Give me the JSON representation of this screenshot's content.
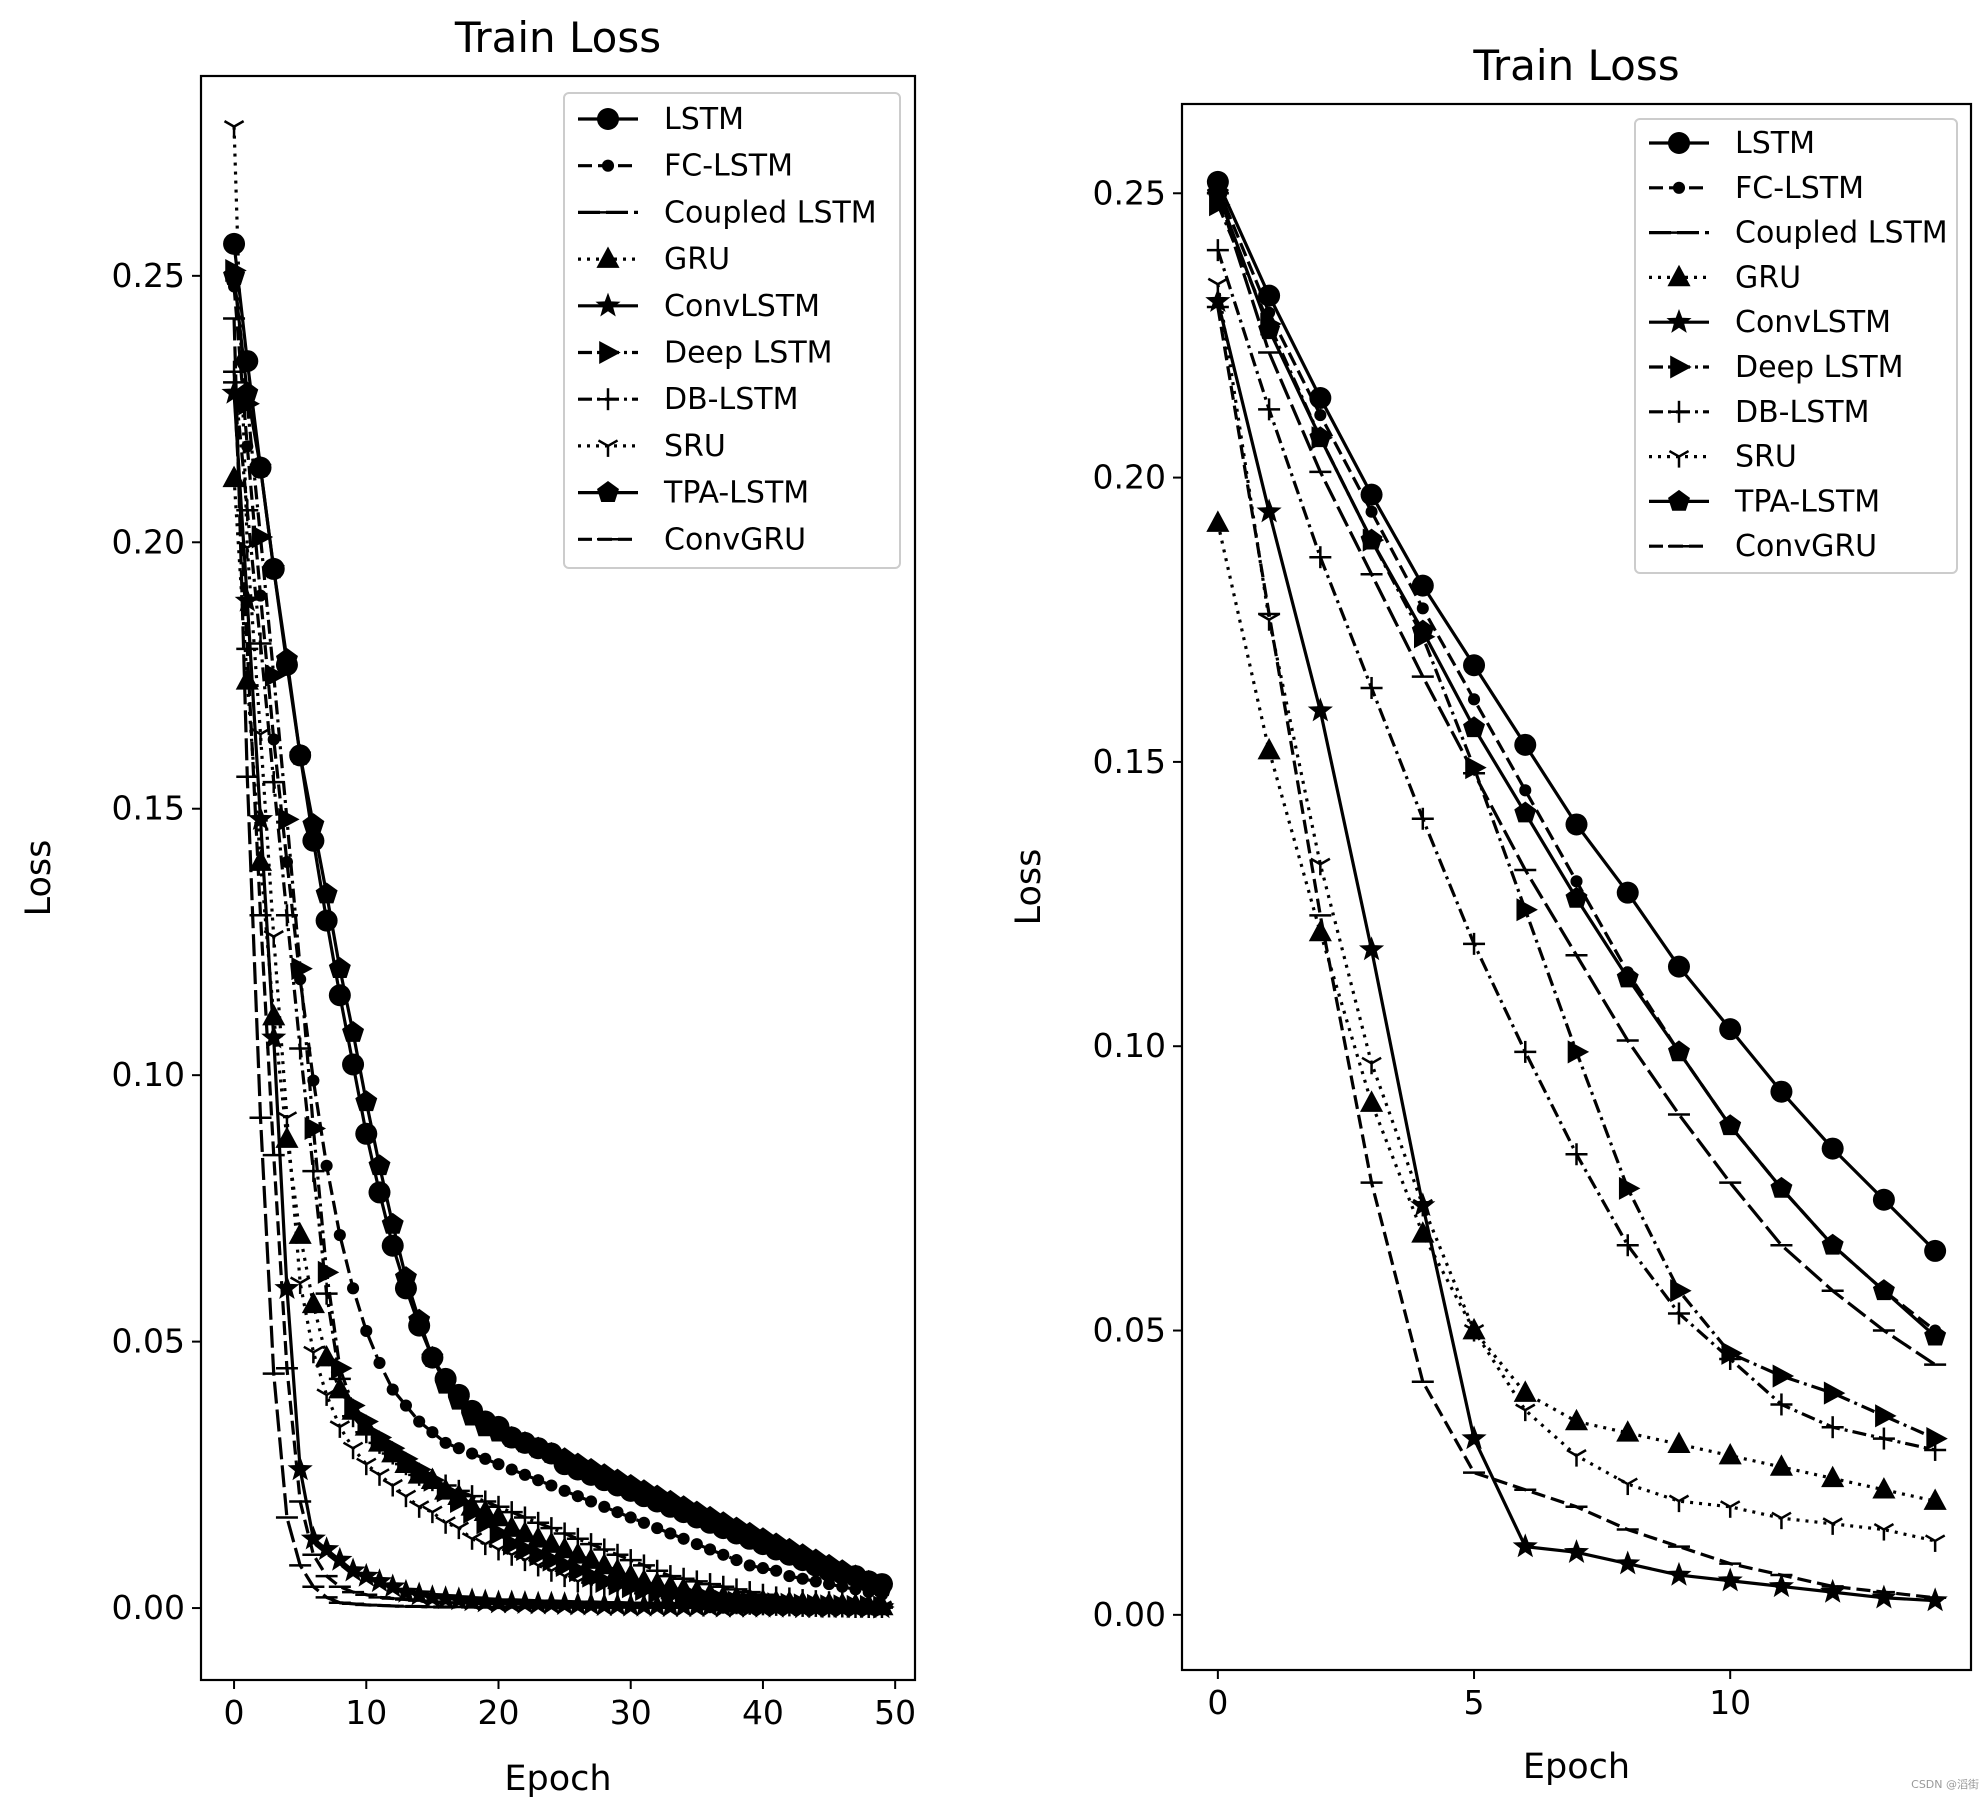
{
  "watermark": "CSDN @滔街",
  "chart_data": [
    {
      "type": "line",
      "title": "Train Loss",
      "xlabel": "Epoch",
      "ylabel": "Loss",
      "xlim": [
        -2.5,
        51.5
      ],
      "ylim": [
        -0.0135,
        0.2875
      ],
      "xticks": [
        0,
        10,
        20,
        30,
        40,
        50
      ],
      "yticks": [
        0.0,
        0.05,
        0.1,
        0.15,
        0.2,
        0.25
      ],
      "ytick_labels": [
        "0.00",
        "0.05",
        "0.10",
        "0.15",
        "0.20",
        "0.25"
      ],
      "legend_position": "top-right",
      "series": [
        {
          "name": "LSTM",
          "marker": "circle",
          "dash": "solid",
          "x_step": 1,
          "values": [
            0.256,
            0.234,
            0.214,
            0.195,
            0.177,
            0.16,
            0.144,
            0.129,
            0.115,
            0.102,
            0.089,
            0.078,
            0.068,
            0.06,
            0.053,
            0.047,
            0.043,
            0.04,
            0.037,
            0.035,
            0.034,
            0.032,
            0.031,
            0.03,
            0.029,
            0.027,
            0.026,
            0.025,
            0.024,
            0.023,
            0.022,
            0.021,
            0.02,
            0.019,
            0.018,
            0.017,
            0.016,
            0.015,
            0.014,
            0.013,
            0.012,
            0.011,
            0.01,
            0.009,
            0.008,
            0.007,
            0.0065,
            0.006,
            0.005,
            0.0045
          ]
        },
        {
          "name": "FC-LSTM",
          "marker": "dot",
          "dash": "dashed",
          "x_step": 1,
          "values": [
            0.248,
            0.218,
            0.19,
            0.163,
            0.14,
            0.118,
            0.099,
            0.083,
            0.07,
            0.06,
            0.052,
            0.046,
            0.041,
            0.038,
            0.035,
            0.033,
            0.031,
            0.03,
            0.029,
            0.028,
            0.027,
            0.026,
            0.025,
            0.024,
            0.023,
            0.022,
            0.021,
            0.02,
            0.019,
            0.018,
            0.017,
            0.016,
            0.015,
            0.014,
            0.013,
            0.012,
            0.011,
            0.01,
            0.009,
            0.008,
            0.0075,
            0.007,
            0.006,
            0.0055,
            0.005,
            0.0045,
            0.004,
            0.0035,
            0.003,
            0.0025
          ]
        },
        {
          "name": "Coupled LSTM",
          "marker": "hline",
          "dash": "longdash",
          "x_step": 1,
          "values": [
            0.242,
            0.156,
            0.092,
            0.044,
            0.017,
            0.008,
            0.004,
            0.002,
            0.001,
            0.0008,
            0.0006,
            0.0005,
            0.0004,
            0.0003,
            0.0003,
            0.0002,
            0.0002,
            0.0002,
            0.0002,
            0.0001,
            0.0001,
            0.0001,
            0.0001,
            0.0001,
            0.0001,
            0.0001,
            0.0001,
            0.0001,
            0.0001,
            0.0001,
            0.0001,
            0.0001,
            0.0001,
            0.0001,
            0.0001,
            0.0001,
            0.0001,
            0.0001,
            0.0001,
            0.0001,
            0.0001,
            0.0001,
            0.0001,
            0.0001,
            0.0001,
            0.0001,
            0.0001,
            0.0001,
            0.0001,
            0.0001
          ]
        },
        {
          "name": "GRU",
          "marker": "triangle",
          "dash": "dotted",
          "x_step": 1,
          "values": [
            0.212,
            0.174,
            0.14,
            0.111,
            0.088,
            0.07,
            0.057,
            0.047,
            0.041,
            0.037,
            0.034,
            0.031,
            0.029,
            0.027,
            0.025,
            0.024,
            0.022,
            0.021,
            0.019,
            0.018,
            0.017,
            0.015,
            0.014,
            0.013,
            0.012,
            0.011,
            0.01,
            0.009,
            0.008,
            0.007,
            0.006,
            0.005,
            0.0045,
            0.004,
            0.0035,
            0.003,
            0.0025,
            0.002,
            0.0018,
            0.0015,
            0.0013,
            0.0011,
            0.001,
            0.0009,
            0.0008,
            0.0007,
            0.0006,
            0.0005,
            0.0004,
            0.0003
          ]
        },
        {
          "name": "ConvLSTM",
          "marker": "star",
          "dash": "solid",
          "x_step": 1,
          "values": [
            0.228,
            0.189,
            0.148,
            0.107,
            0.06,
            0.026,
            0.013,
            0.011,
            0.009,
            0.007,
            0.006,
            0.005,
            0.004,
            0.003,
            0.0025,
            0.002,
            0.0018,
            0.0016,
            0.0014,
            0.0012,
            0.001,
            0.001,
            0.0009,
            0.0008,
            0.0008,
            0.0007,
            0.0006,
            0.0006,
            0.0005,
            0.0005,
            0.0004,
            0.0004,
            0.0004,
            0.0003,
            0.0003,
            0.0003,
            0.0003,
            0.0002,
            0.0002,
            0.0002,
            0.0002,
            0.0002,
            0.0002,
            0.0001,
            0.0001,
            0.0001,
            0.0001,
            0.0001,
            0.0001,
            0.0001
          ]
        },
        {
          "name": "Deep LSTM",
          "marker": "tri-right",
          "dash": "dashdot",
          "x_step": 1,
          "values": [
            0.251,
            0.226,
            0.201,
            0.175,
            0.148,
            0.12,
            0.09,
            0.063,
            0.045,
            0.038,
            0.035,
            0.032,
            0.03,
            0.028,
            0.026,
            0.024,
            0.022,
            0.02,
            0.018,
            0.016,
            0.014,
            0.012,
            0.011,
            0.01,
            0.009,
            0.008,
            0.007,
            0.006,
            0.005,
            0.0045,
            0.004,
            0.0035,
            0.003,
            0.0025,
            0.002,
            0.0018,
            0.0015,
            0.0013,
            0.0011,
            0.001,
            0.0009,
            0.0008,
            0.0007,
            0.0006,
            0.0005,
            0.0004,
            0.0004,
            0.0003,
            0.0003,
            0.0002
          ]
        },
        {
          "name": "DB-LSTM",
          "marker": "plus",
          "dash": "dashdot",
          "x_step": 1,
          "values": [
            0.232,
            0.206,
            0.181,
            0.155,
            0.13,
            0.105,
            0.082,
            0.059,
            0.043,
            0.036,
            0.033,
            0.031,
            0.029,
            0.027,
            0.025,
            0.024,
            0.023,
            0.022,
            0.021,
            0.02,
            0.019,
            0.018,
            0.017,
            0.016,
            0.015,
            0.014,
            0.013,
            0.012,
            0.011,
            0.01,
            0.009,
            0.008,
            0.007,
            0.006,
            0.0055,
            0.005,
            0.0045,
            0.004,
            0.0035,
            0.003,
            0.0025,
            0.002,
            0.0018,
            0.0015,
            0.0013,
            0.0011,
            0.001,
            0.0009,
            0.0008,
            0.0007
          ]
        },
        {
          "name": "SRU",
          "marker": "tri-down",
          "dash": "dotted",
          "x_step": 1,
          "values": [
            0.278,
            0.199,
            0.164,
            0.126,
            0.092,
            0.061,
            0.048,
            0.04,
            0.034,
            0.03,
            0.027,
            0.025,
            0.023,
            0.021,
            0.019,
            0.018,
            0.016,
            0.015,
            0.013,
            0.012,
            0.011,
            0.01,
            0.009,
            0.008,
            0.007,
            0.006,
            0.005,
            0.0045,
            0.004,
            0.0035,
            0.003,
            0.0025,
            0.002,
            0.0018,
            0.0015,
            0.0013,
            0.0011,
            0.001,
            0.0009,
            0.0008,
            0.0007,
            0.0006,
            0.0005,
            0.0004,
            0.0004,
            0.0003,
            0.0003,
            0.0002,
            0.0002,
            0.0002
          ]
        },
        {
          "name": "TPA-LSTM",
          "marker": "pentagon",
          "dash": "solid",
          "x_step": 1,
          "values": [
            0.25,
            0.228,
            0.214,
            0.195,
            0.178,
            0.16,
            0.147,
            0.134,
            0.12,
            0.108,
            0.095,
            0.083,
            0.072,
            0.062,
            0.054,
            0.047,
            0.042,
            0.039,
            0.036,
            0.034,
            0.033,
            0.032,
            0.031,
            0.03,
            0.029,
            0.028,
            0.027,
            0.026,
            0.025,
            0.024,
            0.023,
            0.022,
            0.021,
            0.02,
            0.019,
            0.018,
            0.017,
            0.016,
            0.015,
            0.014,
            0.013,
            0.012,
            0.011,
            0.01,
            0.009,
            0.008,
            0.007,
            0.006,
            0.005,
            0.004
          ]
        },
        {
          "name": "ConvGRU",
          "marker": "hline",
          "dash": "dashed",
          "x_step": 1,
          "values": [
            0.23,
            0.18,
            0.13,
            0.085,
            0.045,
            0.02,
            0.01,
            0.006,
            0.004,
            0.003,
            0.0025,
            0.002,
            0.0018,
            0.0016,
            0.0014,
            0.0012,
            0.001,
            0.001,
            0.0009,
            0.0008,
            0.0008,
            0.0007,
            0.0007,
            0.0006,
            0.0006,
            0.0005,
            0.0005,
            0.0004,
            0.0004,
            0.0004,
            0.0003,
            0.0003,
            0.0003,
            0.0003,
            0.0002,
            0.0002,
            0.0002,
            0.0002,
            0.0002,
            0.0002,
            0.0001,
            0.0001,
            0.0001,
            0.0001,
            0.0001,
            0.0001,
            0.0001,
            0.0001,
            0.0001,
            0.0001
          ]
        }
      ]
    },
    {
      "type": "line",
      "title": "Train Loss",
      "xlabel": "Epoch",
      "ylabel": "Loss",
      "xlim": [
        -0.7,
        14.7
      ],
      "ylim": [
        -0.0097,
        0.2657
      ],
      "xticks": [
        0,
        5,
        10
      ],
      "yticks": [
        0.0,
        0.05,
        0.1,
        0.15,
        0.2,
        0.25
      ],
      "ytick_labels": [
        "0.00",
        "0.05",
        "0.10",
        "0.15",
        "0.20",
        "0.25"
      ],
      "legend_position": "top-right",
      "series": [
        {
          "name": "LSTM",
          "marker": "circle",
          "dash": "solid",
          "x_step": 1,
          "values": [
            0.252,
            0.232,
            0.214,
            0.197,
            0.181,
            0.167,
            0.153,
            0.139,
            0.127,
            0.114,
            0.103,
            0.092,
            0.082,
            0.073,
            0.064
          ]
        },
        {
          "name": "FC-LSTM",
          "marker": "dot",
          "dash": "dashed",
          "x_step": 1,
          "values": [
            0.251,
            0.229,
            0.211,
            0.194,
            0.177,
            0.161,
            0.145,
            0.129,
            0.113,
            0.099,
            0.086,
            0.075,
            0.065,
            0.057,
            0.05
          ]
        },
        {
          "name": "Coupled LSTM",
          "marker": "hline",
          "dash": "longdash",
          "x_step": 1,
          "values": [
            0.25,
            0.222,
            0.201,
            0.183,
            0.165,
            0.148,
            0.131,
            0.116,
            0.101,
            0.088,
            0.076,
            0.065,
            0.057,
            0.05,
            0.044
          ]
        },
        {
          "name": "GRU",
          "marker": "triangle",
          "dash": "dotted",
          "x_step": 1,
          "values": [
            0.192,
            0.152,
            0.12,
            0.09,
            0.067,
            0.05,
            0.039,
            0.034,
            0.032,
            0.03,
            0.028,
            0.026,
            0.024,
            0.022,
            0.02
          ]
        },
        {
          "name": "ConvLSTM",
          "marker": "star",
          "dash": "solid",
          "x_step": 1,
          "values": [
            0.231,
            0.194,
            0.159,
            0.117,
            0.072,
            0.031,
            0.012,
            0.011,
            0.009,
            0.007,
            0.006,
            0.005,
            0.004,
            0.003,
            0.0025
          ]
        },
        {
          "name": "Deep LSTM",
          "marker": "tri-right",
          "dash": "dashdot",
          "x_step": 1,
          "values": [
            0.248,
            0.227,
            0.207,
            0.189,
            0.172,
            0.149,
            0.124,
            0.099,
            0.075,
            0.057,
            0.046,
            0.042,
            0.039,
            0.035,
            0.031
          ]
        },
        {
          "name": "DB-LSTM",
          "marker": "plus",
          "dash": "dashdot",
          "x_step": 1,
          "values": [
            0.24,
            0.212,
            0.186,
            0.163,
            0.14,
            0.118,
            0.099,
            0.081,
            0.065,
            0.053,
            0.045,
            0.037,
            0.033,
            0.031,
            0.029
          ]
        },
        {
          "name": "SRU",
          "marker": "tri-down",
          "dash": "dotted",
          "x_step": 1,
          "values": [
            0.234,
            0.175,
            0.132,
            0.097,
            0.072,
            0.05,
            0.036,
            0.028,
            0.023,
            0.02,
            0.019,
            0.017,
            0.016,
            0.015,
            0.013
          ]
        },
        {
          "name": "TPA-LSTM",
          "marker": "pentagon",
          "dash": "solid",
          "x_step": 1,
          "values": [
            0.25,
            0.226,
            0.207,
            0.189,
            0.173,
            0.156,
            0.141,
            0.126,
            0.112,
            0.099,
            0.086,
            0.075,
            0.065,
            0.057,
            0.049
          ]
        },
        {
          "name": "ConvGRU",
          "marker": "hline",
          "dash": "dashed",
          "x_step": 1,
          "values": [
            0.23,
            0.176,
            0.123,
            0.076,
            0.041,
            0.025,
            0.022,
            0.019,
            0.015,
            0.012,
            0.009,
            0.007,
            0.005,
            0.004,
            0.003
          ]
        }
      ]
    }
  ]
}
